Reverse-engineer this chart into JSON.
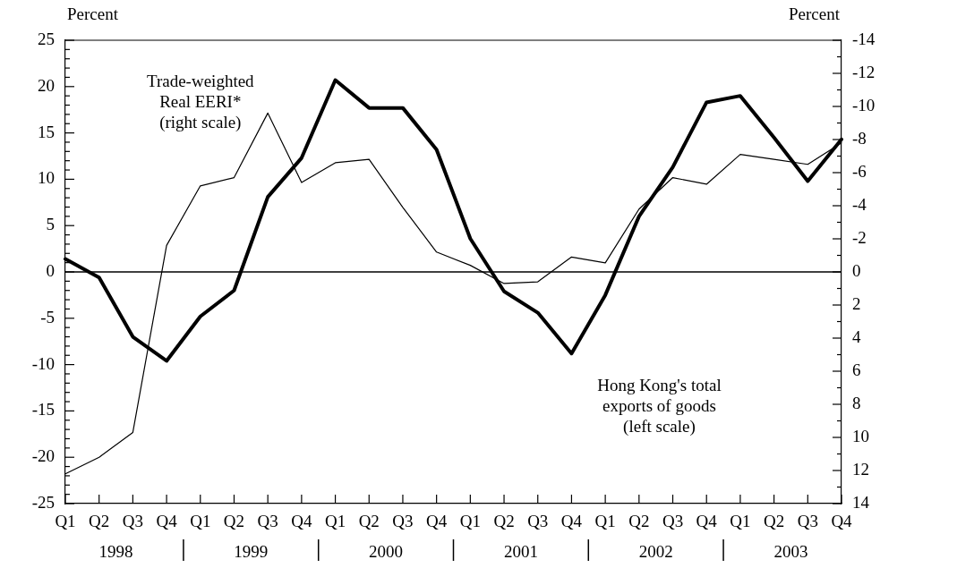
{
  "chart_data": {
    "type": "line",
    "categories": [
      "Q1",
      "Q2",
      "Q3",
      "Q4",
      "Q1",
      "Q2",
      "Q3",
      "Q4",
      "Q1",
      "Q2",
      "Q3",
      "Q4",
      "Q1",
      "Q2",
      "Q3",
      "Q4",
      "Q1",
      "Q2",
      "Q3",
      "Q4",
      "Q1",
      "Q2",
      "Q3",
      "Q4"
    ],
    "series": [
      {
        "name": "Hong Kong's total exports of goods (left scale)",
        "color": "#000000",
        "values": [
          1.4,
          -0.6,
          -7.0,
          -9.6,
          -4.8,
          -2.0,
          8.1,
          12.3,
          20.7,
          17.7,
          17.7,
          13.2,
          3.6,
          -2.1,
          -4.4,
          -8.8,
          -2.5,
          6.0,
          11.3,
          18.3,
          19.0,
          14.5,
          9.8,
          14.3
        ]
      },
      {
        "name": "Trade-weighted Real EERI* (right scale)",
        "color": "#000000",
        "axis": "y2",
        "values": [
          12.2,
          11.2,
          9.7,
          -1.6,
          -5.2,
          -5.7,
          -9.6,
          -5.4,
          -6.6,
          -6.8,
          -3.9,
          -1.2,
          -0.4,
          0.7,
          0.6,
          -0.9,
          -0.55,
          -3.8,
          -5.7,
          -5.3,
          -7.1,
          -6.8,
          -6.5,
          -7.8
        ]
      }
    ],
    "ylabel": "Percent",
    "y2label": "Percent",
    "ylim": [
      -25,
      25
    ],
    "yticks": [
      -25,
      -20,
      -15,
      -10,
      -5,
      0,
      5,
      10,
      15,
      20,
      25
    ],
    "y2lim": [
      14,
      -14
    ],
    "y2ticks": [
      -14,
      -12,
      -10,
      -8,
      -6,
      -4,
      -2,
      0,
      2,
      4,
      6,
      8,
      10,
      12,
      14
    ],
    "ref_lines": [
      {
        "axis": "y",
        "value": 0,
        "color": "#000000"
      }
    ],
    "annotations": [
      "1998",
      "1999",
      "2000",
      "2001",
      "2002",
      "2003"
    ],
    "grid": false,
    "legend": false,
    "marker": "none",
    "line_style": "solid"
  }
}
